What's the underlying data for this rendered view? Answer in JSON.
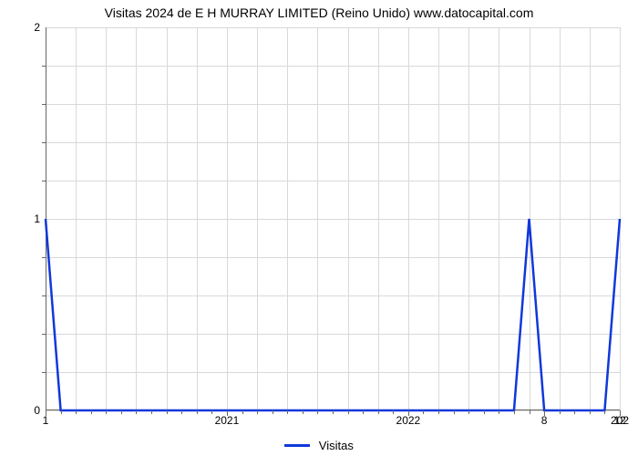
{
  "chart": {
    "type": "line",
    "title": "Visitas 2024 de E H MURRAY LIMITED (Reino Unido) www.datocapital.com",
    "title_fontsize": 14,
    "background_color": "#ffffff",
    "grid_color": "#d9d9d9",
    "axis_color": "#666666",
    "line_color": "#1138db",
    "line_width": 2.5,
    "x_axis": {
      "range_min": 0,
      "range_max": 38,
      "major_ticks": [
        {
          "pos": 0,
          "label": "1"
        },
        {
          "pos": 12,
          "label": "2021"
        },
        {
          "pos": 24,
          "label": "2022"
        },
        {
          "pos": 33,
          "label": "8"
        },
        {
          "pos": 38,
          "label": "12"
        }
      ],
      "minor_tick_positions": [
        1,
        2,
        3,
        4,
        5,
        6,
        7,
        8,
        9,
        10,
        11,
        13,
        14,
        15,
        16,
        17,
        18,
        19,
        20,
        21,
        22,
        23,
        25,
        26,
        27,
        28,
        29,
        30,
        31,
        32,
        34,
        35,
        36,
        37
      ],
      "truncated_label": "202"
    },
    "y_axis": {
      "range_min": 0,
      "range_max": 2,
      "major_ticks": [
        {
          "pos": 0,
          "label": "0"
        },
        {
          "pos": 1,
          "label": "1"
        },
        {
          "pos": 2,
          "label": "2"
        }
      ],
      "minor_tick_positions": [
        0.2,
        0.4,
        0.6,
        0.8,
        1.2,
        1.4,
        1.6,
        1.8
      ]
    },
    "grid": {
      "h_lines_count": 10,
      "v_lines_count": 19
    },
    "series": {
      "label": "Visitas",
      "points": [
        {
          "x": 0,
          "y": 1
        },
        {
          "x": 1,
          "y": 0
        },
        {
          "x": 31,
          "y": 0
        },
        {
          "x": 32,
          "y": 1
        },
        {
          "x": 33,
          "y": 0
        },
        {
          "x": 37,
          "y": 0
        },
        {
          "x": 38,
          "y": 1
        }
      ]
    }
  }
}
